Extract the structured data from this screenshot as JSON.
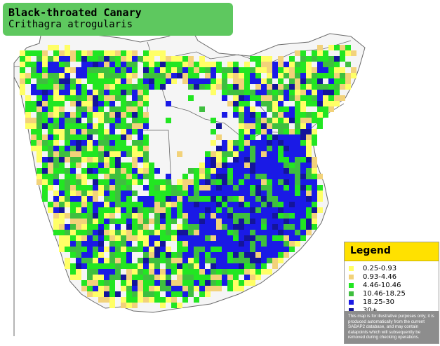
{
  "title": {
    "common_name": "Black-throated Canary",
    "scientific_name": "Crithagra atrogularis"
  },
  "legend": {
    "heading": "Legend",
    "items": [
      {
        "label": "0.25-0.93",
        "color": "#ffff66"
      },
      {
        "label": "0.93-4.46",
        "color": "#f2d27a"
      },
      {
        "label": "4.46-10.46",
        "color": "#22e622"
      },
      {
        "label": "10.46-18.25",
        "color": "#3fbf3f"
      },
      {
        "label": "18.25-30",
        "color": "#1a1ae6"
      },
      {
        "label": "30+",
        "color": "#14149a"
      }
    ],
    "disclaimer": "This map is for illustrative purposes only; it is produced automatically from the current SABAP2 database, and may contain datapoints which will subsequently be removed during checking operations."
  },
  "map_colors": {
    "land": "#f5f5f5",
    "sea": "#ffffff",
    "border": "#6a6a6a",
    "grid": "#d8d8d8"
  }
}
